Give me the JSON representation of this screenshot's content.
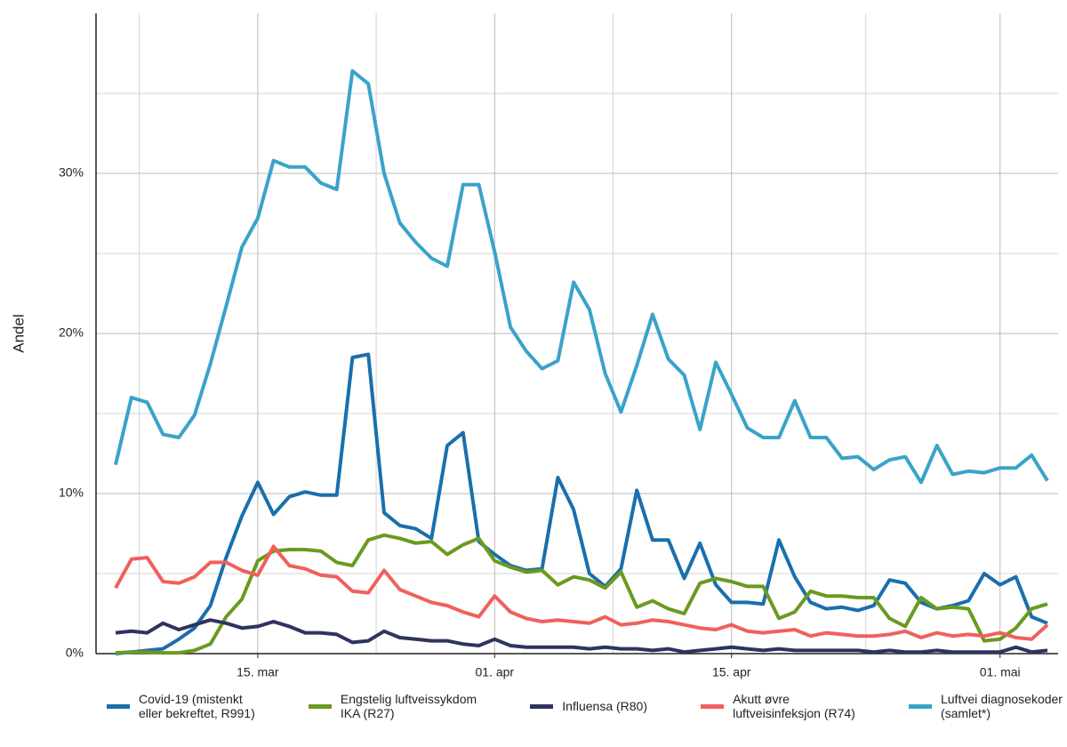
{
  "chart_data": {
    "type": "line",
    "y_label": "Andel",
    "categories": [
      null,
      null,
      null,
      null,
      null,
      null,
      null,
      null,
      null,
      "15. mar",
      null,
      null,
      null,
      null,
      null,
      null,
      null,
      null,
      null,
      null,
      null,
      null,
      null,
      null,
      "01. apr",
      null,
      null,
      null,
      null,
      null,
      null,
      null,
      null,
      null,
      null,
      null,
      null,
      null,
      null,
      "15. apr",
      null,
      null,
      null,
      null,
      null,
      null,
      null,
      null,
      null,
      null,
      null,
      null,
      null,
      null,
      null,
      null,
      "01. mai",
      null,
      null,
      null
    ],
    "ylim": [
      0,
      40
    ],
    "yticks": [
      {
        "value": 0,
        "label": "0%"
      },
      {
        "value": 10,
        "label": "10%"
      },
      {
        "value": 20,
        "label": "20%"
      },
      {
        "value": 30,
        "label": "30%"
      }
    ],
    "minor_yticks": [
      5,
      15,
      25,
      35
    ],
    "grid": true,
    "legend": "bottom",
    "series": [
      {
        "name": "Covid-19 (mistenkt\neller bekreftet, R991)",
        "color": "#1a6fad",
        "values": [
          0,
          0.1,
          0.2,
          0.3,
          0.9,
          1.6,
          3.0,
          6.0,
          8.6,
          10.7,
          8.7,
          9.8,
          10.1,
          9.9,
          9.9,
          18.5,
          18.7,
          8.8,
          8.0,
          7.8,
          7.2,
          13.0,
          13.8,
          7.0,
          6.2,
          5.5,
          5.2,
          5.3,
          11.0,
          9.0,
          5.0,
          4.2,
          5.3,
          10.2,
          7.1,
          7.1,
          4.7,
          6.9,
          4.3,
          3.2,
          3.2,
          3.1,
          7.1,
          4.8,
          3.2,
          2.8,
          2.9,
          2.7,
          3.0,
          4.6,
          4.4,
          3.2,
          2.8,
          3.0,
          3.3,
          5.0,
          4.3,
          4.8,
          2.3,
          1.9
        ]
      },
      {
        "name": "Engstelig luftveissykdom\nIKA (R27)",
        "color": "#6a9a1f",
        "values": [
          0.05,
          0.1,
          0.1,
          0.05,
          0.05,
          0.2,
          0.6,
          2.3,
          3.4,
          5.8,
          6.4,
          6.5,
          6.5,
          6.4,
          5.7,
          5.5,
          7.1,
          7.4,
          7.2,
          6.9,
          7.0,
          6.2,
          6.8,
          7.2,
          5.8,
          5.4,
          5.1,
          5.2,
          4.3,
          4.8,
          4.6,
          4.1,
          5.1,
          2.9,
          3.3,
          2.8,
          2.5,
          4.4,
          4.7,
          4.5,
          4.2,
          4.2,
          2.2,
          2.6,
          3.9,
          3.6,
          3.6,
          3.5,
          3.5,
          2.2,
          1.7,
          3.5,
          2.8,
          2.9,
          2.8,
          0.8,
          0.9,
          1.6,
          2.8,
          3.1
        ]
      },
      {
        "name": "Influensa (R80)",
        "color": "#2e3360",
        "values": [
          1.3,
          1.4,
          1.3,
          1.9,
          1.5,
          1.8,
          2.1,
          1.9,
          1.6,
          1.7,
          2.0,
          1.7,
          1.3,
          1.3,
          1.2,
          0.7,
          0.8,
          1.4,
          1.0,
          0.9,
          0.8,
          0.8,
          0.6,
          0.5,
          0.9,
          0.5,
          0.4,
          0.4,
          0.4,
          0.4,
          0.3,
          0.4,
          0.3,
          0.3,
          0.2,
          0.3,
          0.1,
          0.2,
          0.3,
          0.4,
          0.3,
          0.2,
          0.3,
          0.2,
          0.2,
          0.2,
          0.2,
          0.2,
          0.1,
          0.2,
          0.1,
          0.1,
          0.2,
          0.1,
          0.1,
          0.1,
          0.1,
          0.4,
          0.1,
          0.2
        ]
      },
      {
        "name": "Akutt øvre\nluftveisinfeksjon (R74)",
        "color": "#f0605d",
        "values": [
          4.1,
          5.9,
          6.0,
          4.5,
          4.4,
          4.8,
          5.7,
          5.7,
          5.2,
          4.9,
          6.7,
          5.5,
          5.3,
          4.9,
          4.8,
          3.9,
          3.8,
          5.2,
          4.0,
          3.6,
          3.2,
          3.0,
          2.6,
          2.3,
          3.6,
          2.6,
          2.2,
          2.0,
          2.1,
          2.0,
          1.9,
          2.3,
          1.8,
          1.9,
          2.1,
          2.0,
          1.8,
          1.6,
          1.5,
          1.8,
          1.4,
          1.3,
          1.4,
          1.5,
          1.1,
          1.3,
          1.2,
          1.1,
          1.1,
          1.2,
          1.4,
          1.0,
          1.3,
          1.1,
          1.2,
          1.1,
          1.3,
          1.0,
          0.9,
          1.8
        ]
      },
      {
        "name": "Luftvei diagnosekoder\n(samlet*)",
        "color": "#3aa3c9",
        "values": [
          11.8,
          16.0,
          15.7,
          13.7,
          13.5,
          14.9,
          18.1,
          21.7,
          25.4,
          27.2,
          30.8,
          30.4,
          30.4,
          29.4,
          29.0,
          36.4,
          35.6,
          30.0,
          26.9,
          25.7,
          24.7,
          24.2,
          29.3,
          29.3,
          25.1,
          20.4,
          18.9,
          17.8,
          18.3,
          23.2,
          21.5,
          17.5,
          15.1,
          18.0,
          21.2,
          18.4,
          17.4,
          14.0,
          18.2,
          16.2,
          14.1,
          13.5,
          13.5,
          15.8,
          13.5,
          13.5,
          12.2,
          12.3,
          11.5,
          12.1,
          12.3,
          10.7,
          13.0,
          11.2,
          11.4,
          11.3,
          11.6,
          11.6,
          12.4,
          10.8
        ]
      }
    ]
  }
}
